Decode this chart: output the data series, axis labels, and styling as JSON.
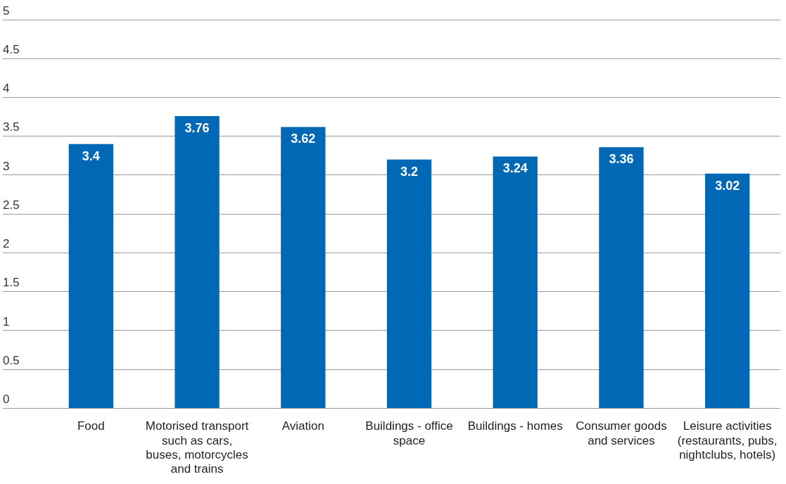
{
  "chart_data": {
    "type": "bar",
    "categories": [
      "Food",
      "Motorised transport such as cars, buses, motorcycles and trains",
      "Aviation",
      "Buildings - office space",
      "Buildings - homes",
      "Consumer goods and services",
      "Leisure activities (restaurants, pubs, nightclubs, hotels)"
    ],
    "values": [
      3.4,
      3.76,
      3.62,
      3.2,
      3.24,
      3.36,
      3.02
    ],
    "color": "#0068b4",
    "ylim": [
      0,
      5
    ],
    "yticks": [
      0,
      0.5,
      1,
      1.5,
      2,
      2.5,
      3,
      3.5,
      4,
      4.5,
      5
    ],
    "grid": "y",
    "legend": false,
    "data_labels": true
  }
}
